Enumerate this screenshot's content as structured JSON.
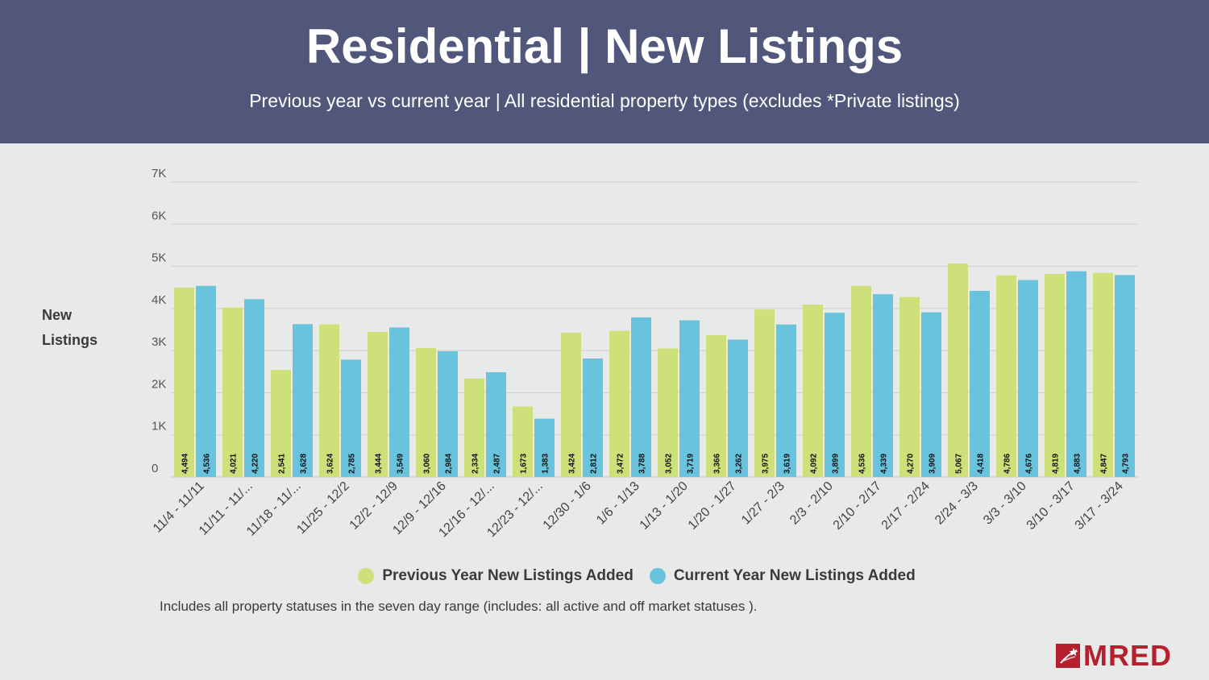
{
  "header": {
    "title": "Residential | New Listings",
    "subtitle": "Previous year vs current year | All residential property types (excludes *Private listings)"
  },
  "y_axis_label": "New Listings",
  "footnote": "Includes all property statuses in the seven day range (includes: all active and off market statuses ).",
  "logo": {
    "text": "MRED"
  },
  "colors": {
    "previous": "#cde07a",
    "current": "#6ac3dd",
    "header": "#50577a",
    "brand": "#b5202e"
  },
  "chart_data": {
    "type": "bar",
    "title": "Residential | New Listings",
    "xlabel": "",
    "ylabel": "New Listings",
    "ylim": [
      0,
      7000
    ],
    "yticks": [
      0,
      1000,
      2000,
      3000,
      4000,
      5000,
      6000,
      7000
    ],
    "ytick_labels": [
      "0",
      "1K",
      "2K",
      "3K",
      "4K",
      "5K",
      "6K",
      "7K"
    ],
    "legend_position": "bottom",
    "grid": true,
    "categories": [
      "11/4 - 11/11",
      "11/11 - 11/...",
      "11/18 - 11/...",
      "11/25 - 12/2",
      "12/2 - 12/9",
      "12/9 - 12/16",
      "12/16 - 12/...",
      "12/23 - 12/...",
      "12/30 - 1/6",
      "1/6 - 1/13",
      "1/13 - 1/20",
      "1/20 - 1/27",
      "1/27 - 2/3",
      "2/3 - 2/10",
      "2/10 - 2/17",
      "2/17 - 2/24",
      "2/24 - 3/3",
      "3/3 - 3/10",
      "3/10 - 3/17",
      "3/17 - 3/24"
    ],
    "series": [
      {
        "name": "Previous Year New Listings Added",
        "values": [
          4494,
          4021,
          2541,
          3624,
          3444,
          3060,
          2334,
          1673,
          3424,
          3472,
          3052,
          3366,
          3975,
          4092,
          4536,
          4270,
          5067,
          4786,
          4819,
          4847
        ],
        "labels": [
          "4,494",
          "4,021",
          "2,541",
          "3,624",
          "3,444",
          "3,060",
          "2,334",
          "1,673",
          "3,424",
          "3,472",
          "3,052",
          "3,366",
          "3,975",
          "4,092",
          "4,536",
          "4,270",
          "5,067",
          "4,786",
          "4,819",
          "4,847"
        ]
      },
      {
        "name": "Current Year New Listings Added",
        "values": [
          4536,
          4220,
          3628,
          2785,
          3549,
          2984,
          2487,
          1383,
          2812,
          3788,
          3719,
          3262,
          3619,
          3899,
          4339,
          3909,
          4418,
          4676,
          4883,
          4793
        ],
        "labels": [
          "4,536",
          "4,220",
          "3,628",
          "2,785",
          "3,549",
          "2,984",
          "2,487",
          "1,383",
          "2,812",
          "3,788",
          "3,719",
          "3,262",
          "3,619",
          "3,899",
          "4,339",
          "3,909",
          "4,418",
          "4,676",
          "4,883",
          "4,793"
        ]
      }
    ]
  }
}
